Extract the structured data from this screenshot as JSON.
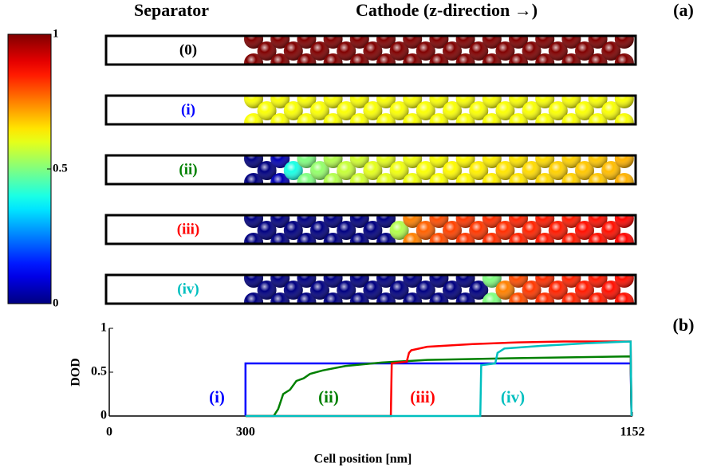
{
  "panel_labels": [
    "(a)",
    "(b)"
  ],
  "chart_data": [
    {
      "type": "sphere-rows",
      "headers": [
        "Separator",
        "Cathode (z-direction →)"
      ],
      "colormap": "jet",
      "clim": [
        0,
        1
      ],
      "cticks": [
        0,
        0.5,
        1
      ],
      "rows": [
        {
          "label": "(0)",
          "color": "#000000",
          "values": [
            1,
            1,
            1,
            1,
            1,
            1,
            1,
            1,
            1,
            1,
            1,
            1,
            1,
            1,
            1,
            1,
            1,
            1,
            1,
            1,
            1,
            1,
            1,
            1,
            1,
            1,
            1,
            1,
            1
          ]
        },
        {
          "label": "(i)",
          "color": "#0000ff",
          "values": [
            0.62,
            0.62,
            0.62,
            0.62,
            0.62,
            0.62,
            0.62,
            0.62,
            0.62,
            0.62,
            0.62,
            0.62,
            0.62,
            0.62,
            0.62,
            0.62,
            0.62,
            0.62,
            0.62,
            0.62,
            0.62,
            0.62,
            0.62,
            0.62,
            0.62,
            0.62,
            0.62,
            0.62,
            0.62
          ]
        },
        {
          "label": "(ii)",
          "color": "#008000",
          "values": [
            0,
            0,
            0.05,
            0.4,
            0.5,
            0.52,
            0.55,
            0.57,
            0.58,
            0.6,
            0.6,
            0.61,
            0.61,
            0.62,
            0.62,
            0.63,
            0.63,
            0.64,
            0.64,
            0.65,
            0.65,
            0.66,
            0.66,
            0.67,
            0.67,
            0.68,
            0.68,
            0.69,
            0.7
          ]
        },
        {
          "label": "(iii)",
          "color": "#ff0000",
          "values": [
            0,
            0,
            0,
            0,
            0,
            0,
            0,
            0,
            0,
            0,
            0,
            0.55,
            0.75,
            0.78,
            0.8,
            0.81,
            0.82,
            0.82,
            0.83,
            0.83,
            0.84,
            0.84,
            0.85,
            0.85,
            0.85,
            0.86,
            0.86,
            0.86,
            0.87
          ]
        },
        {
          "label": "(iv)",
          "color": "#00bfbf",
          "values": [
            0,
            0,
            0,
            0,
            0,
            0,
            0,
            0,
            0,
            0,
            0,
            0,
            0,
            0,
            0,
            0,
            0,
            0,
            0.5,
            0.75,
            0.8,
            0.82,
            0.83,
            0.84,
            0.84,
            0.85,
            0.85,
            0.86,
            0.86
          ]
        }
      ]
    },
    {
      "type": "line",
      "xlabel": "Cell position [nm]",
      "ylabel": "DOD",
      "xlim": [
        0,
        1152
      ],
      "ylim": [
        0,
        1
      ],
      "xticks": [
        0,
        300,
        1152
      ],
      "yticks": [
        0,
        0.5,
        1
      ],
      "series": [
        {
          "name": "(i)",
          "color": "#0000ff",
          "x": [
            300,
            300,
            1148,
            1150
          ],
          "values": [
            0,
            0.6,
            0.6,
            0
          ]
        },
        {
          "name": "(ii)",
          "color": "#008000",
          "x": [
            300,
            362,
            372,
            383,
            398,
            412,
            428,
            442,
            470,
            520,
            600,
            700,
            900,
            1148,
            1150
          ],
          "values": [
            0,
            0,
            0.08,
            0.25,
            0.3,
            0.4,
            0.43,
            0.48,
            0.52,
            0.57,
            0.61,
            0.64,
            0.66,
            0.68,
            0
          ]
        },
        {
          "name": "(iii)",
          "color": "#ff0000",
          "x": [
            300,
            620,
            622,
            655,
            660,
            665,
            700,
            800,
            900,
            1000,
            1148,
            1150
          ],
          "values": [
            0,
            0,
            0.6,
            0.62,
            0.72,
            0.75,
            0.79,
            0.82,
            0.84,
            0.85,
            0.85,
            0
          ]
        },
        {
          "name": "(iv)",
          "color": "#00bfbf",
          "x": [
            300,
            817,
            819,
            850,
            855,
            870,
            950,
            1050,
            1148,
            1150
          ],
          "values": [
            0,
            0,
            0.58,
            0.6,
            0.72,
            0.77,
            0.8,
            0.83,
            0.85,
            0
          ]
        }
      ]
    }
  ]
}
